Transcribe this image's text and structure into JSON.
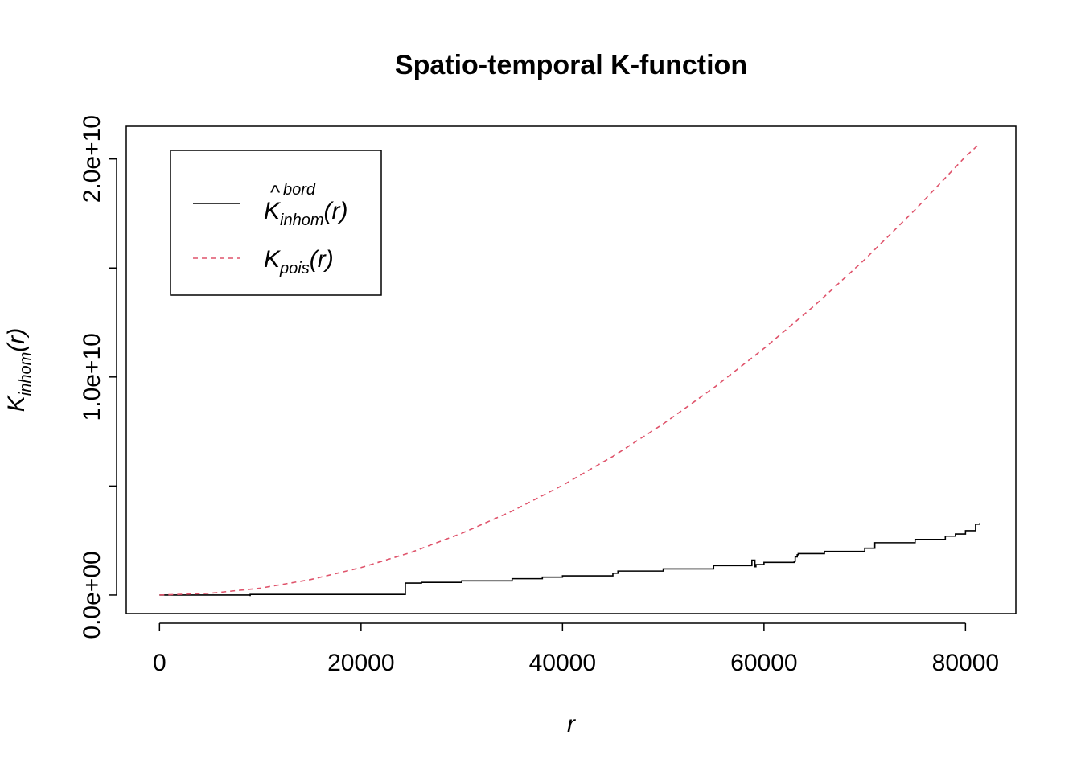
{
  "chart_data": {
    "type": "line",
    "title": "Spatio-temporal K-function",
    "xlabel": "r",
    "ylabel": {
      "base": "K",
      "sub": "inhom",
      "arg": "(r)"
    },
    "xlim": [
      -3300,
      85000
    ],
    "ylim": [
      -850000000.0,
      21500000000.0
    ],
    "x_ticks": [
      0,
      20000,
      40000,
      60000,
      80000
    ],
    "x_tick_labels": [
      "0",
      "20000",
      "40000",
      "60000",
      "80000"
    ],
    "y_ticks": [
      0,
      5000000000.0,
      10000000000.0,
      15000000000.0,
      20000000000.0
    ],
    "y_tick_labels": [
      "0.0e+00",
      "",
      "1.0e+10",
      "",
      "2.0e+10"
    ],
    "grid": false,
    "legend_position": "top-left",
    "legend": [
      {
        "base": "K",
        "sup": "bord",
        "sub": "inhom",
        "arg": "(r)",
        "hat": true,
        "color": "#000000",
        "dash": "solid"
      },
      {
        "base": "K",
        "sub": "pois",
        "arg": "(r)",
        "hat": false,
        "color": "#DF536B",
        "dash": "dashed"
      }
    ],
    "series": [
      {
        "color": "#000000",
        "dash": "solid",
        "style": "step",
        "x": [
          0,
          9000,
          9001,
          24300,
          24400,
          26000,
          30000,
          35000,
          38000,
          40000,
          45000,
          45500,
          50000,
          55000,
          58800,
          59100,
          59200,
          60000,
          63000,
          63100,
          63300,
          63400,
          66000,
          70000,
          71000,
          75000,
          78000,
          79000,
          80000,
          81000,
          81400
        ],
        "values": [
          0,
          -20000000.0,
          30000000.0,
          30000000.0,
          550000000.0,
          580000000.0,
          650000000.0,
          750000000.0,
          820000000.0,
          880000000.0,
          1000000000.0,
          1100000000.0,
          1200000000.0,
          1350000000.0,
          1600000000.0,
          1300000000.0,
          1400000000.0,
          1500000000.0,
          1550000000.0,
          1750000000.0,
          1850000000.0,
          1900000000.0,
          2000000000.0,
          2150000000.0,
          2400000000.0,
          2550000000.0,
          2700000000.0,
          2800000000.0,
          2950000000.0,
          3250000000.0,
          3300000000.0
        ]
      },
      {
        "color": "#DF536B",
        "dash": "dashed",
        "style": "line",
        "x": [
          0,
          5000,
          10000,
          15000,
          20000,
          25000,
          30000,
          35000,
          40000,
          45000,
          50000,
          55000,
          60000,
          65000,
          70000,
          75000,
          80000,
          81400
        ],
        "values": [
          0,
          79000000.0,
          314000000.0,
          710000000.0,
          1260000000.0,
          1960000000.0,
          2830000000.0,
          3850000000.0,
          5030000000.0,
          6360000000.0,
          7850000000.0,
          9500000000.0,
          11310000000.0,
          13270000000.0,
          15390000000.0,
          17670000000.0,
          20110000000.0,
          20700000000.0
        ]
      }
    ]
  }
}
